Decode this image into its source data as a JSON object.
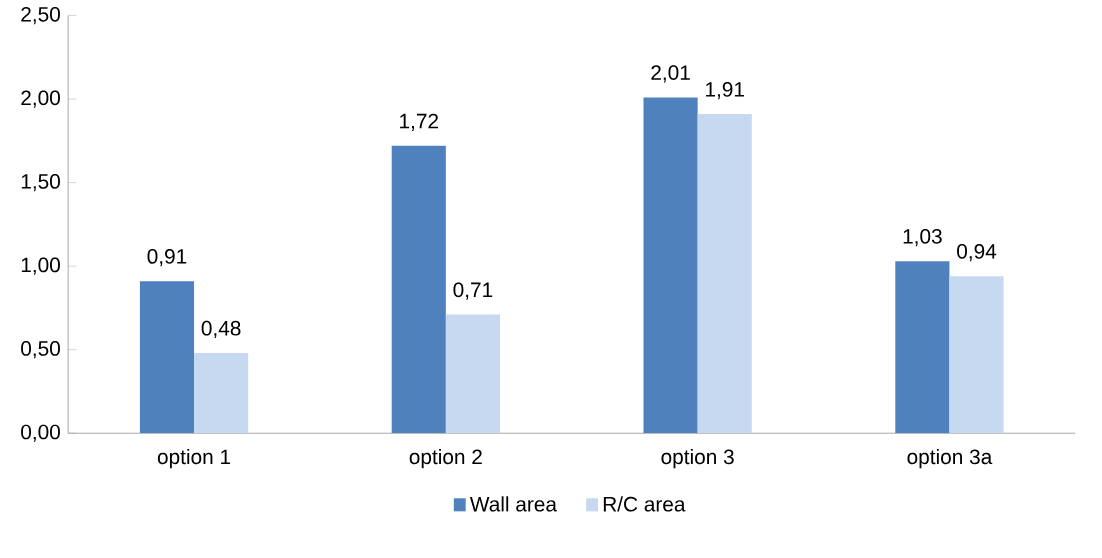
{
  "chart_data": {
    "type": "bar",
    "categories": [
      "option 1",
      "option 2",
      "option 3",
      "option 3a"
    ],
    "series": [
      {
        "name": "Wall area",
        "color": "#4f81bd",
        "values": [
          0.91,
          1.72,
          2.01,
          1.03
        ],
        "value_labels": [
          "0,91",
          "1,72",
          "2,01",
          "1,03"
        ]
      },
      {
        "name": "R/C area",
        "color": "#c6d9f1",
        "values": [
          0.48,
          0.71,
          1.91,
          0.94
        ],
        "value_labels": [
          "0,48",
          "0,71",
          "1,91",
          "0,94"
        ]
      }
    ],
    "ylim": [
      0,
      2.5
    ],
    "yticks": [
      {
        "value": 0,
        "label": "0,00"
      },
      {
        "value": 0.5,
        "label": "0,50"
      },
      {
        "value": 1,
        "label": "1,00"
      },
      {
        "value": 1.5,
        "label": "1,50"
      },
      {
        "value": 2,
        "label": "2,00"
      },
      {
        "value": 2.5,
        "label": "2,50"
      }
    ],
    "grid": false,
    "legend": "bottom"
  }
}
